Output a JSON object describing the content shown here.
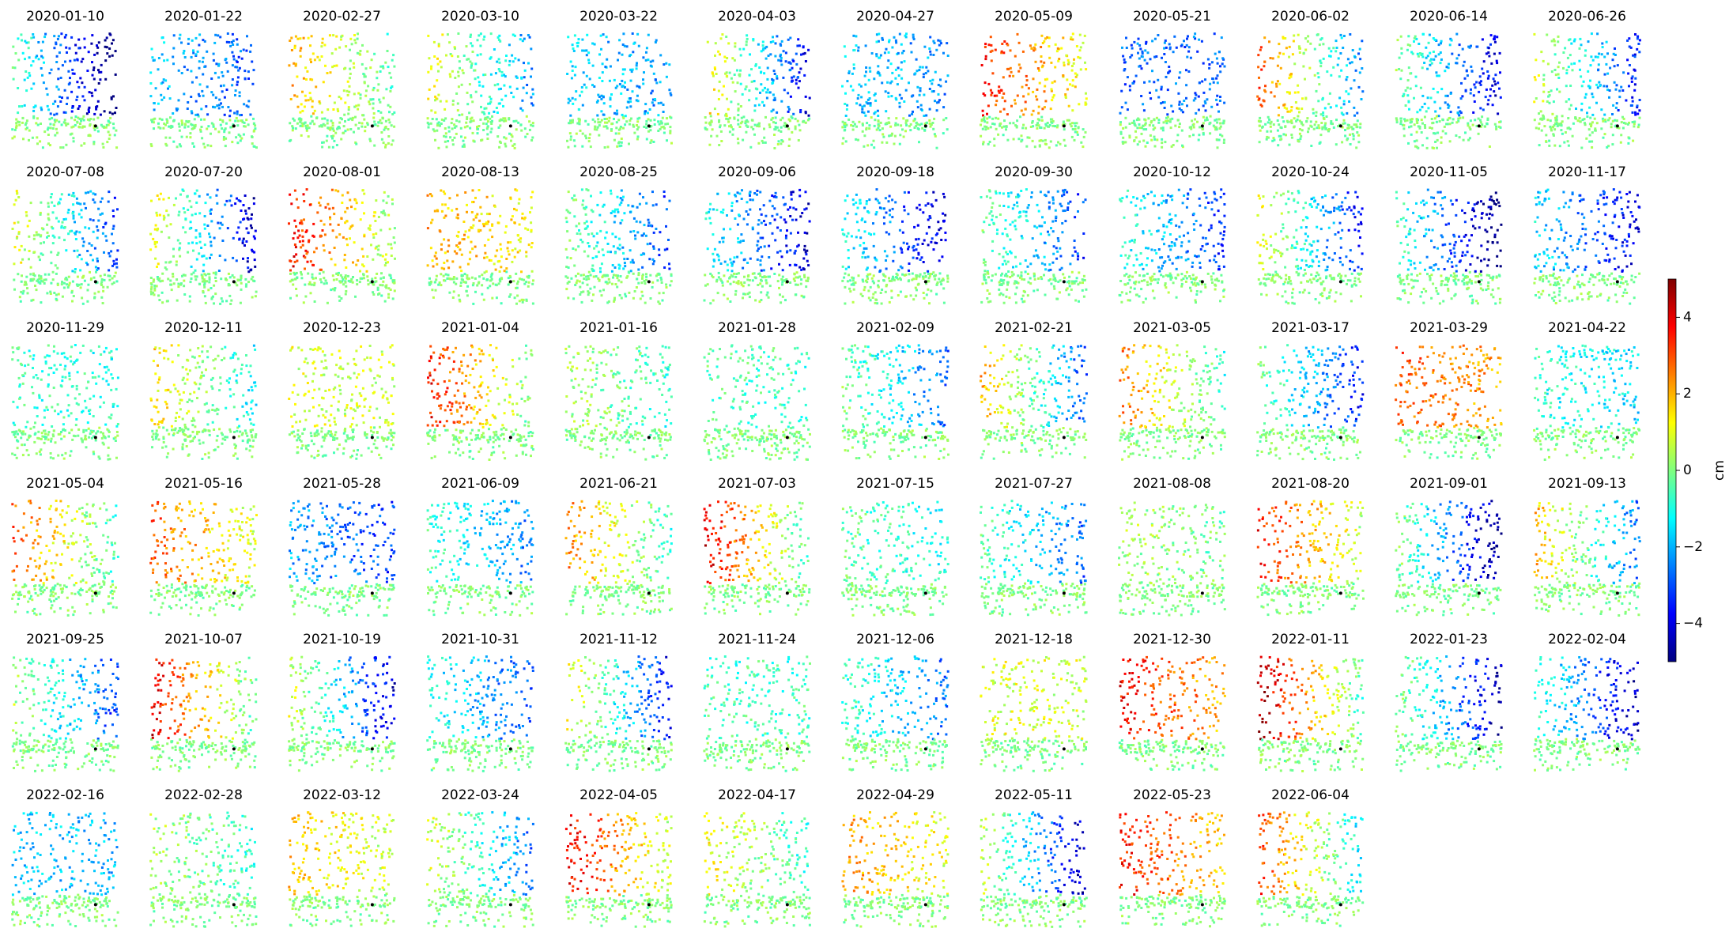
{
  "panels": [
    "2020-01-10",
    "2020-01-22",
    "2020-02-27",
    "2020-03-10",
    "2020-03-22",
    "2020-04-03",
    "2020-04-27",
    "2020-05-09",
    "2020-05-21",
    "2020-06-02",
    "2020-06-14",
    "2020-06-26",
    "2020-07-08",
    "2020-07-20",
    "2020-08-01",
    "2020-08-13",
    "2020-08-25",
    "2020-09-06",
    "2020-09-18",
    "2020-09-30",
    "2020-10-12",
    "2020-10-24",
    "2020-11-05",
    "2020-11-17",
    "2020-11-29",
    "2020-12-11",
    "2020-12-23",
    "2021-01-04",
    "2021-01-16",
    "2021-01-28",
    "2021-02-09",
    "2021-02-21",
    "2021-03-05",
    "2021-03-17",
    "2021-03-29",
    "2021-04-22",
    "2021-05-04",
    "2021-05-16",
    "2021-05-28",
    "2021-06-09",
    "2021-06-21",
    "2021-07-03",
    "2021-07-15",
    "2021-07-27",
    "2021-08-08",
    "2021-08-20",
    "2021-09-01",
    "2021-09-13",
    "2021-09-25",
    "2021-10-07",
    "2021-10-19",
    "2021-10-31",
    "2021-11-12",
    "2021-11-24",
    "2021-12-06",
    "2021-12-18",
    "2021-12-30",
    "2022-01-11",
    "2022-01-23",
    "2022-02-04",
    "2022-02-16",
    "2022-02-28",
    "2022-03-12",
    "2022-03-24",
    "2022-04-05",
    "2022-04-17",
    "2022-04-29",
    "2022-05-11",
    "2022-05-23",
    "2022-06-04"
  ],
  "colorbar": {
    "label": "cm",
    "lim": [
      -5,
      5
    ],
    "ticks": [
      {
        "value": -4,
        "label": "−4"
      },
      {
        "value": -2,
        "label": "−2"
      },
      0,
      2,
      4
    ]
  }
}
